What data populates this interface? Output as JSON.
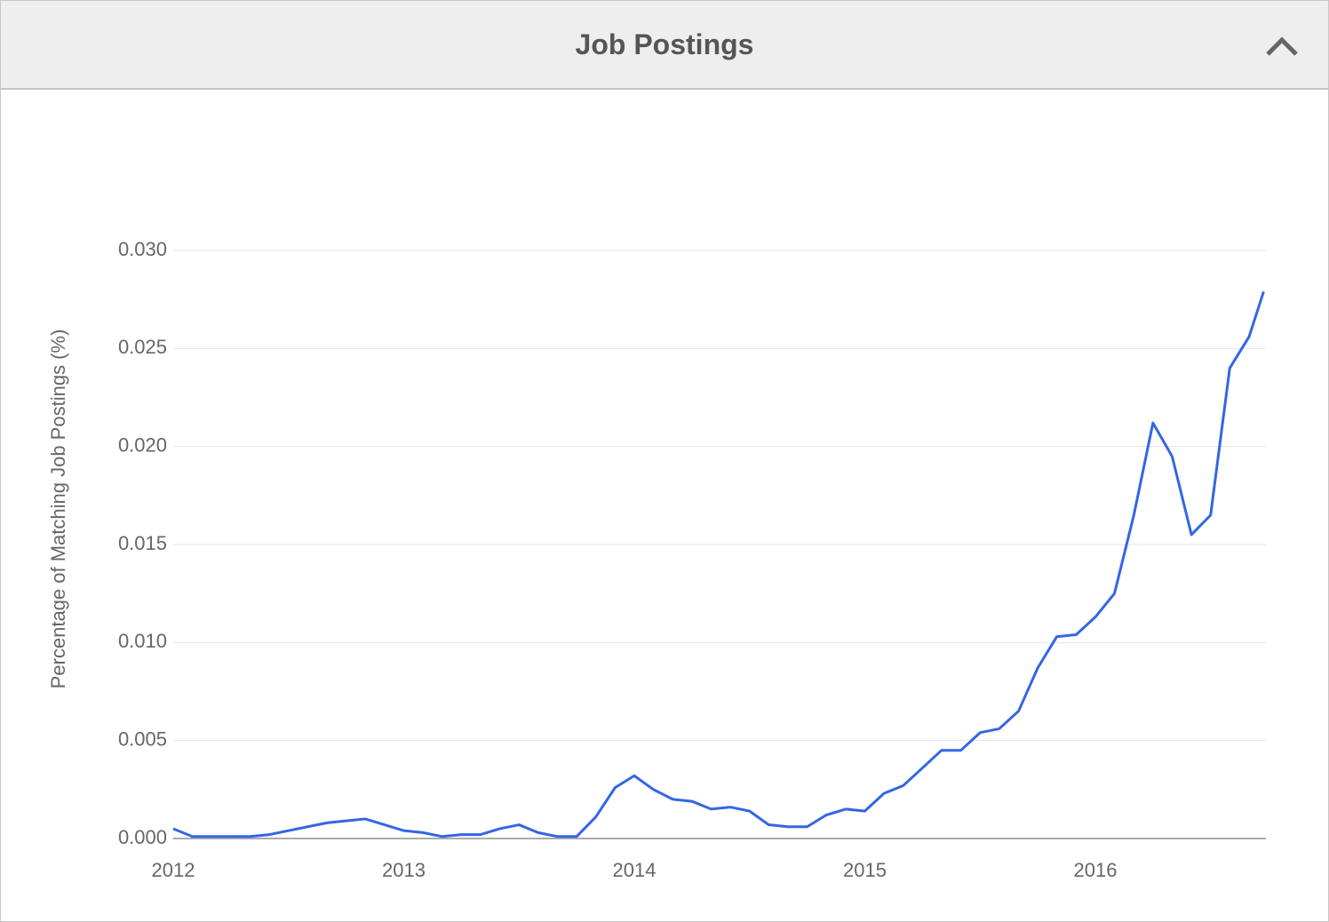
{
  "chart_data": {
    "type": "line",
    "title": "Job Postings",
    "y_label": "Percentage of Matching Job Postings (%)",
    "x": [
      2012.0,
      2012.083,
      2012.167,
      2012.25,
      2012.333,
      2012.417,
      2012.5,
      2012.583,
      2012.667,
      2012.75,
      2012.833,
      2012.917,
      2013.0,
      2013.083,
      2013.167,
      2013.25,
      2013.333,
      2013.417,
      2013.5,
      2013.583,
      2013.667,
      2013.75,
      2013.833,
      2013.917,
      2014.0,
      2014.083,
      2014.167,
      2014.25,
      2014.333,
      2014.417,
      2014.5,
      2014.583,
      2014.667,
      2014.75,
      2014.833,
      2014.917,
      2015.0,
      2015.083,
      2015.167,
      2015.25,
      2015.333,
      2015.417,
      2015.5,
      2015.583,
      2015.667,
      2015.75,
      2015.833,
      2015.917,
      2016.0,
      2016.083,
      2016.167,
      2016.25,
      2016.333,
      2016.417,
      2016.5,
      2016.583,
      2016.667,
      2016.73
    ],
    "series": [
      {
        "color": "#3366e6",
        "values": [
          0.0005,
          0.0001,
          0.0001,
          0.0001,
          0.0001,
          0.0002,
          0.0004,
          0.0006,
          0.0008,
          0.0009,
          0.001,
          0.0007,
          0.0004,
          0.0003,
          0.0001,
          0.0002,
          0.0002,
          0.0005,
          0.0007,
          0.0003,
          0.0001,
          0.0001,
          0.0011,
          0.0026,
          0.0032,
          0.0025,
          0.002,
          0.0019,
          0.0015,
          0.0016,
          0.0014,
          0.0007,
          0.0006,
          0.0006,
          0.0012,
          0.0015,
          0.0014,
          0.0023,
          0.0027,
          0.0036,
          0.0045,
          0.0045,
          0.0054,
          0.0056,
          0.0065,
          0.0087,
          0.0103,
          0.0104,
          0.0113,
          0.0125,
          0.0165,
          0.0212,
          0.0195,
          0.0155,
          0.0165,
          0.024,
          0.0256,
          0.0279
        ]
      }
    ],
    "xlim": [
      2012,
      2016.74
    ],
    "xticks": [
      2012,
      2013,
      2014,
      2015,
      2016
    ],
    "ylim": [
      0,
      0.03
    ],
    "yticks": [
      {
        "value": 0,
        "label": "0.000"
      },
      {
        "value": 0.005,
        "label": "0.005"
      },
      {
        "value": 0.01,
        "label": "0.010"
      },
      {
        "value": 0.015,
        "label": "0.015"
      },
      {
        "value": 0.02,
        "label": "0.020"
      },
      {
        "value": 0.025,
        "label": "0.025"
      },
      {
        "value": 0.03,
        "label": "0.030"
      }
    ],
    "grid": true
  }
}
